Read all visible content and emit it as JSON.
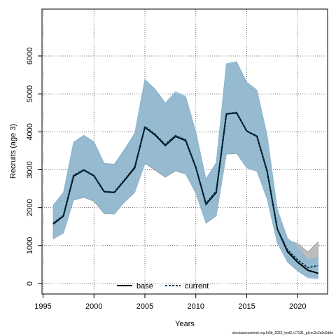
{
  "chart_data": {
    "type": "area",
    "xlabel": "Years",
    "ylabel": "Recruits (age 3)",
    "xlim": [
      1996,
      2022
    ],
    "ylim": [
      0,
      6000
    ],
    "x_ticks": [
      1995,
      2000,
      2005,
      2010,
      2015,
      2020
    ],
    "y_ticks": [
      0,
      1000,
      2000,
      3000,
      4000,
      5000,
      6000
    ],
    "grid": true,
    "legend_position": "bottom-center",
    "footer": "stockassessment.org.fn5b_2023_test2,r17131_git:ec2c2a0c6dde",
    "x": [
      1996,
      1997,
      1998,
      1999,
      2000,
      2001,
      2002,
      2003,
      2004,
      2005,
      2006,
      2007,
      2008,
      2009,
      2010,
      2011,
      2012,
      2013,
      2014,
      2015,
      2016,
      2017,
      2018,
      2019,
      2020,
      2021,
      2022
    ],
    "series": [
      {
        "name": "base",
        "color": "#000000",
        "line_style": "solid",
        "band_color": "#bdbdbd",
        "values": [
          1570,
          1780,
          2830,
          2990,
          2840,
          2420,
          2400,
          2720,
          3050,
          4120,
          3920,
          3640,
          3880,
          3770,
          3060,
          2090,
          2400,
          4470,
          4500,
          4020,
          3880,
          2960,
          1440,
          840,
          560,
          350,
          270
        ],
        "lower": [
          1180,
          1330,
          2200,
          2270,
          2170,
          1840,
          1830,
          2150,
          2400,
          3170,
          2990,
          2800,
          2970,
          2890,
          2380,
          1590,
          1780,
          3410,
          3430,
          3050,
          2960,
          2230,
          1070,
          570,
          330,
          190,
          160
        ],
        "upper": [
          2060,
          2380,
          3710,
          3900,
          3730,
          3160,
          3130,
          3520,
          3940,
          5370,
          5110,
          4720,
          5010,
          4900,
          3980,
          2740,
          3160,
          5760,
          5830,
          5290,
          5090,
          3910,
          1950,
          1140,
          1050,
          830,
          1090
        ]
      },
      {
        "name": "current",
        "color": "#003d5c",
        "line_style": "dashed",
        "band_color": "#8ab9d6",
        "values": [
          1590,
          1800,
          2860,
          3000,
          2850,
          2430,
          2410,
          2740,
          3070,
          4140,
          3940,
          3670,
          3900,
          3790,
          3070,
          2110,
          2440,
          4480,
          4510,
          4020,
          3890,
          2970,
          1440,
          890,
          620,
          420,
          470
        ],
        "lower": [
          1190,
          1340,
          2210,
          2280,
          2180,
          1850,
          1840,
          2160,
          2410,
          3180,
          3010,
          2810,
          2990,
          2900,
          2390,
          1600,
          1790,
          3420,
          3440,
          3050,
          2970,
          2240,
          1080,
          590,
          330,
          150,
          120
        ],
        "upper": [
          2070,
          2400,
          3730,
          3910,
          3740,
          3170,
          3150,
          3540,
          3960,
          5380,
          5130,
          4760,
          5060,
          4940,
          4000,
          2760,
          3190,
          5800,
          5850,
          5310,
          5100,
          3910,
          1960,
          1200,
          970,
          630,
          690
        ]
      }
    ]
  }
}
